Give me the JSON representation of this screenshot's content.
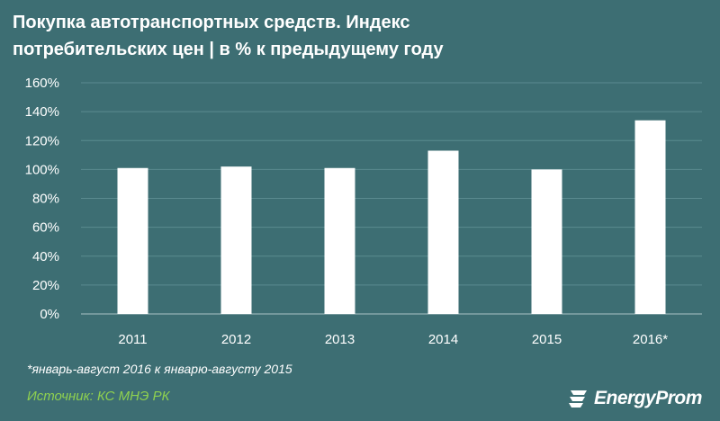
{
  "title": "Покупка автотранспортных средств. Индекс потребительских цен | в % к предыдущему году",
  "footnote": "*январь-август 2016 к январю-августу 2015",
  "source": "Источник: КС МНЭ РК",
  "logo": {
    "text": "EnergyProm",
    "icon": "energyprom-logo-icon"
  },
  "colors": {
    "background": "#3d6e73",
    "bars": "#ffffff",
    "grid": "#5b8b90",
    "ticks": "#ffffff",
    "source": "#8fd14f"
  },
  "chart_data": {
    "type": "bar",
    "categories": [
      "2011",
      "2012",
      "2013",
      "2014",
      "2015",
      "2016*"
    ],
    "values": [
      101,
      102,
      101,
      113,
      100,
      134
    ],
    "ylim": [
      0,
      160
    ],
    "yticks": [
      0,
      20,
      40,
      60,
      80,
      100,
      120,
      140,
      160
    ],
    "ytick_labels": [
      "0%",
      "20%",
      "40%",
      "60%",
      "80%",
      "100%",
      "120%",
      "140%",
      "160%"
    ],
    "xlabel": "",
    "ylabel": "",
    "grid": true,
    "legend": "none"
  }
}
